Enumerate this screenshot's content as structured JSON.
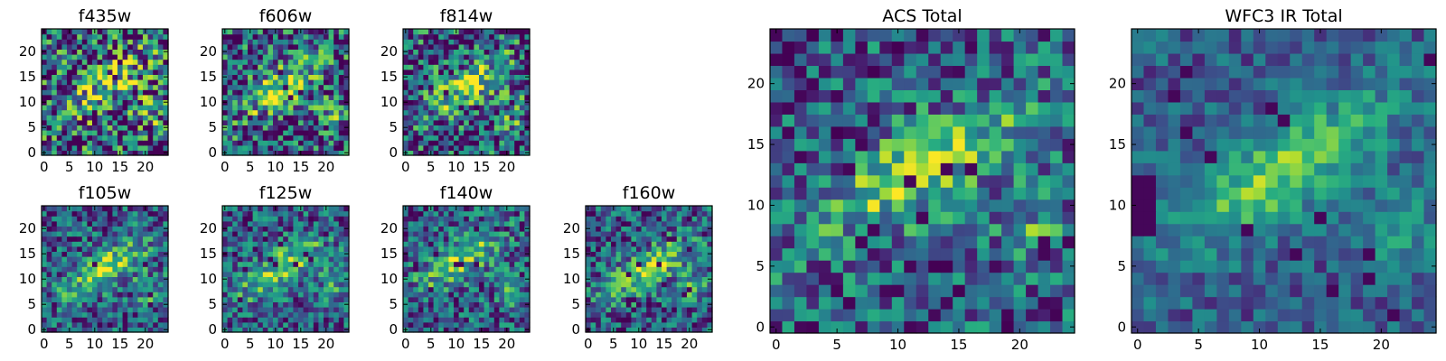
{
  "chart_data": [
    {
      "type": "heatmap",
      "title": "f435w",
      "xticks": [
        0,
        5,
        10,
        15,
        20
      ],
      "yticks": [
        0,
        5,
        10,
        15,
        20
      ],
      "xlim": [
        0,
        24
      ],
      "ylim": [
        0,
        24
      ],
      "grid": false,
      "colormap": "viridis",
      "values_description": "noisy",
      "hotspot": [
        12,
        13
      ]
    },
    {
      "type": "heatmap",
      "title": "f606w",
      "xticks": [
        0,
        5,
        10,
        15,
        20
      ],
      "yticks": [
        0,
        5,
        10,
        15,
        20
      ],
      "xlim": [
        0,
        24
      ],
      "ylim": [
        0,
        24
      ],
      "grid": false,
      "colormap": "viridis",
      "hotspot": [
        11,
        13
      ]
    },
    {
      "type": "heatmap",
      "title": "f814w",
      "xticks": [
        0,
        5,
        10,
        15,
        20
      ],
      "yticks": [
        0,
        5,
        10,
        15,
        20
      ],
      "xlim": [
        0,
        24
      ],
      "ylim": [
        0,
        24
      ],
      "grid": false,
      "colormap": "viridis",
      "hotspot": [
        12,
        13
      ]
    },
    {
      "type": "heatmap",
      "title": "f105w",
      "xticks": [
        0,
        5,
        10,
        15,
        20
      ],
      "yticks": [
        0,
        5,
        10,
        15,
        20
      ],
      "xlim": [
        0,
        24
      ],
      "ylim": [
        0,
        24
      ],
      "grid": false,
      "colormap": "viridis",
      "hotspot": [
        12,
        12
      ]
    },
    {
      "type": "heatmap",
      "title": "f125w",
      "xticks": [
        0,
        5,
        10,
        15,
        20
      ],
      "yticks": [
        0,
        5,
        10,
        15,
        20
      ],
      "xlim": [
        0,
        24
      ],
      "ylim": [
        0,
        24
      ],
      "grid": false,
      "colormap": "viridis",
      "hotspot": [
        11,
        12
      ]
    },
    {
      "type": "heatmap",
      "title": "f140w",
      "xticks": [
        0,
        5,
        10,
        15,
        20
      ],
      "yticks": [
        0,
        5,
        10,
        15,
        20
      ],
      "xlim": [
        0,
        24
      ],
      "ylim": [
        0,
        24
      ],
      "grid": false,
      "colormap": "viridis",
      "hotspot": [
        11,
        14
      ]
    },
    {
      "type": "heatmap",
      "title": "f160w",
      "xticks": [
        0,
        5,
        10,
        15,
        20
      ],
      "yticks": [
        0,
        5,
        10,
        15,
        20
      ],
      "xlim": [
        0,
        24
      ],
      "ylim": [
        0,
        24
      ],
      "grid": false,
      "colormap": "viridis",
      "hotspot": [
        12,
        12
      ]
    },
    {
      "type": "heatmap",
      "title": "ACS Total",
      "xticks": [
        0,
        5,
        10,
        15,
        20
      ],
      "yticks": [
        0,
        5,
        10,
        15,
        20
      ],
      "xlim": [
        0,
        24
      ],
      "ylim": [
        0,
        24
      ],
      "grid": false,
      "colormap": "viridis",
      "hotspot": [
        12,
        13
      ]
    },
    {
      "type": "heatmap",
      "title": "WFC3 IR Total",
      "xticks": [
        0,
        5,
        10,
        15,
        20
      ],
      "yticks": [
        0,
        5,
        10,
        15,
        20
      ],
      "xlim": [
        0,
        24
      ],
      "ylim": [
        0,
        24
      ],
      "grid": false,
      "colormap": "viridis",
      "hotspot": [
        12,
        13
      ]
    }
  ],
  "colors": {
    "cmap_low": "#440154",
    "cmap_mid_low": "#31688e",
    "cmap_mid": "#21918c",
    "cmap_mid_high": "#5ec962",
    "cmap_high": "#fde725"
  }
}
